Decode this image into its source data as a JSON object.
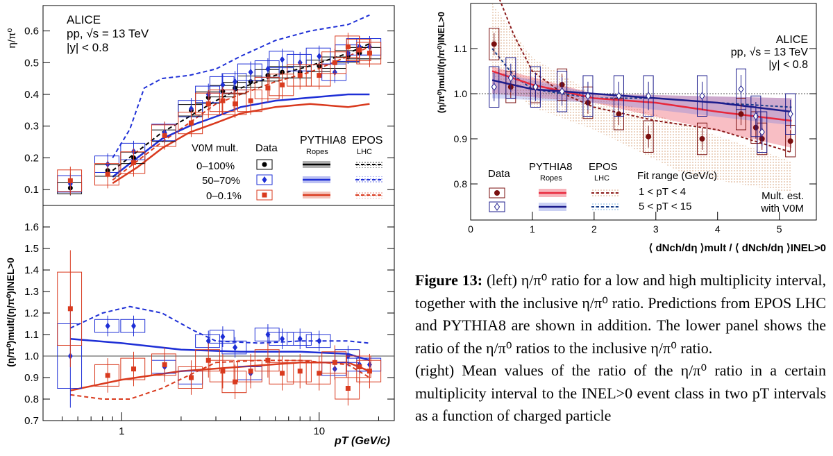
{
  "colors": {
    "all": "#000000",
    "mid": "#1e2fd6",
    "high": "#d93a1e",
    "incl_line": "#555555",
    "pythia_low": "#e8283c",
    "pythia_high": "#1c1c8c",
    "epos_low": "#8b1a1a",
    "epos_high": "#1a3f8b",
    "data_low": "#7a0f0f"
  },
  "left": {
    "top": {
      "ylabel": "η/π⁰",
      "header": [
        "ALICE",
        "pp, √s = 13 TeV",
        "|y| < 0.8"
      ],
      "legend_head": {
        "mult": "V0M mult.",
        "data": "Data",
        "pythia": "PYTHIA8",
        "pythia_sub": "Ropes",
        "epos": "EPOS",
        "epos_sub": "LHC"
      },
      "legend_rows": [
        "0–100%",
        "50–70%",
        "0–0.1%"
      ],
      "yticks": [
        "0.1",
        "0.2",
        "0.3",
        "0.4",
        "0.5",
        "0.6"
      ]
    },
    "bottom": {
      "ylabel": "(η/π⁰)mult/(η/π⁰)INEL>0",
      "yticks": [
        "0.7",
        "0.8",
        "0.9",
        "1.0",
        "1.1",
        "1.2",
        "1.3",
        "1.4",
        "1.5",
        "1.6"
      ],
      "xticks": [
        "1",
        "10"
      ],
      "xlabel": "pT (GeV/c)"
    }
  },
  "right": {
    "header": [
      "ALICE",
      "pp, √s = 13 TeV",
      "|y| < 0.8"
    ],
    "ylabel": "(η/π⁰)mult/(η/π⁰)INEL>0",
    "yticks": [
      "0.8",
      "0.9",
      "1.0",
      "1.1"
    ],
    "xticks": [
      "0",
      "1",
      "2",
      "3",
      "4",
      "5"
    ],
    "xlabel": "⟨ dNch/dη ⟩mult / ⟨ dNch/dη ⟩INEL>0",
    "legend": {
      "data": "Data",
      "pythia": "PYTHIA8",
      "pythia_sub": "Ropes",
      "epos": "EPOS",
      "epos_sub": "LHC",
      "fit": "Fit range (GeV/c)",
      "row1": "1 < pT < 4",
      "row2": "5 < pT < 15"
    },
    "note": [
      "Mult. est.",
      "with V0M"
    ]
  },
  "caption": {
    "label": "Figure 13:",
    "p1": "(left) η/π⁰ ratio for a low and high multiplicity interval, together with the inclusive η/π⁰ ratio. Predictions from EPOS LHC and PYTHIA8 are shown in addition. The lower panel shows the ratio of the η/π⁰ ratios to the inclusive η/π⁰ ratio.",
    "p2": "(right) Mean values of the ratio of the η/π⁰ ratio in a certain multiplicity interval to the INEL>0 event class in two pT intervals as a function of charged particle"
  },
  "chart_data": [
    {
      "type": "scatter",
      "title": "",
      "xlabel": "pT (GeV/c)",
      "ylabel": "η/π⁰",
      "xscale": "log",
      "ylim": [
        0.05,
        0.68
      ],
      "x": [
        0.55,
        0.85,
        1.15,
        1.65,
        2.25,
        2.75,
        3.25,
        3.75,
        4.5,
        5.5,
        6.5,
        8.0,
        10.0,
        12.0,
        14.0,
        16.0,
        18.0
      ],
      "series": [
        {
          "name": "0–100%",
          "values": [
            0.105,
            0.16,
            0.2,
            0.27,
            0.35,
            0.39,
            0.41,
            0.42,
            0.44,
            0.46,
            0.47,
            0.47,
            0.49,
            0.5,
            0.52,
            0.53,
            0.53
          ]
        },
        {
          "name": "50–70%",
          "values": [
            0.118,
            0.18,
            0.22,
            0.28,
            0.355,
            0.4,
            0.43,
            0.44,
            0.47,
            0.48,
            0.51,
            0.5,
            0.52,
            0.47,
            0.53,
            0.55,
            0.55
          ]
        },
        {
          "name": "0–0.1%",
          "values": [
            0.128,
            0.148,
            0.185,
            0.27,
            0.31,
            0.37,
            0.38,
            0.37,
            0.38,
            0.42,
            0.43,
            0.46,
            0.46,
            0.5,
            0.55,
            0.54,
            0.53
          ]
        }
      ]
    },
    {
      "type": "scatter",
      "title": "",
      "xlabel": "pT (GeV/c)",
      "ylabel": "(η/π⁰)mult/(η/π⁰)INEL>0",
      "xscale": "log",
      "ylim": [
        0.7,
        1.7
      ],
      "x": [
        0.55,
        0.85,
        1.15,
        1.65,
        2.25,
        2.75,
        3.25,
        3.75,
        4.5,
        5.5,
        6.5,
        8.0,
        10.0,
        12.0,
        14.0,
        16.0,
        18.0
      ],
      "series": [
        {
          "name": "50–70%",
          "values": [
            1.0,
            1.14,
            1.14,
            0.95,
            0.9,
            1.07,
            1.09,
            1.04,
            0.92,
            1.1,
            1.08,
            1.08,
            1.07,
            0.94,
            1.0,
            0.96,
            0.96
          ]
        },
        {
          "name": "0–0.1%",
          "values": [
            1.22,
            0.91,
            0.94,
            0.96,
            0.9,
            0.98,
            0.93,
            0.88,
            0.93,
            0.98,
            0.92,
            0.93,
            0.92,
            0.97,
            0.85,
            0.95,
            0.93
          ]
        }
      ]
    },
    {
      "type": "scatter",
      "title": "",
      "xlabel": "⟨ dNch/dη ⟩mult / ⟨ dNch/dη ⟩INEL>0",
      "ylabel": "(η/π⁰)mult/(η/π⁰)INEL>0",
      "xlim": [
        0,
        5.6
      ],
      "ylim": [
        0.72,
        1.2
      ],
      "series": [
        {
          "name": "1 < pT < 4",
          "x": [
            0.38,
            0.65,
            1.05,
            1.48,
            1.9,
            2.4,
            2.88,
            3.75,
            4.38,
            4.62,
            4.72,
            5.18
          ],
          "values": [
            1.11,
            1.015,
            1.015,
            1.02,
            0.98,
            0.955,
            0.905,
            0.9,
            0.955,
            0.925,
            0.9,
            0.895
          ]
        },
        {
          "name": "5 < pT < 15",
          "x": [
            0.38,
            0.65,
            1.05,
            1.48,
            1.9,
            2.4,
            2.88,
            3.75,
            4.38,
            4.62,
            4.72,
            5.18
          ],
          "values": [
            1.015,
            1.035,
            1.015,
            1.005,
            0.995,
            0.995,
            0.995,
            0.995,
            1.01,
            0.95,
            0.915,
            0.955
          ]
        }
      ]
    }
  ]
}
